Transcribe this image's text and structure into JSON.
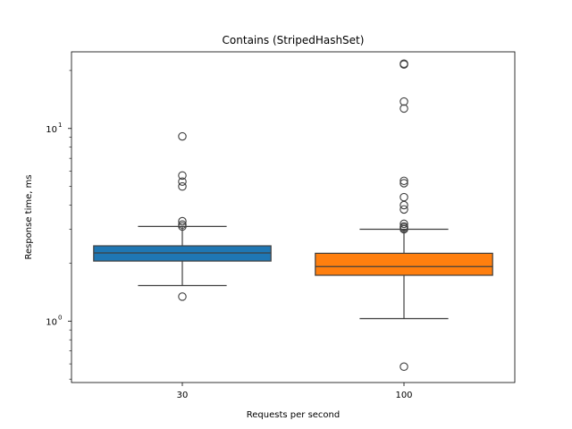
{
  "chart_data": {
    "type": "box",
    "title": "Contains (StripedHashSet)",
    "xlabel": "Requests per second",
    "ylabel": "Response time, ms",
    "y_scale": "log",
    "ylim": [
      0.48,
      25
    ],
    "y_major_ticks": [
      1,
      10
    ],
    "y_tick_labels": [
      "10^0",
      "10^1"
    ],
    "grid": false,
    "legend": "none",
    "categories": [
      "30",
      "100"
    ],
    "series": [
      {
        "category": "30",
        "color": "#1f77b4",
        "whisker_low": 1.53,
        "q1": 2.05,
        "median": 2.26,
        "q3": 2.46,
        "whisker_high": 3.1,
        "outliers": [
          1.34,
          3.1,
          3.17,
          3.3,
          5.0,
          5.3,
          5.7,
          9.1
        ]
      },
      {
        "category": "100",
        "color": "#ff7f0e",
        "whisker_low": 1.03,
        "q1": 1.73,
        "median": 1.92,
        "q3": 2.25,
        "whisker_high": 3.0,
        "outliers": [
          0.58,
          3.0,
          3.05,
          3.1,
          3.2,
          3.8,
          4.0,
          4.4,
          5.2,
          5.35,
          12.7,
          13.8,
          21.5,
          21.7
        ]
      }
    ]
  }
}
